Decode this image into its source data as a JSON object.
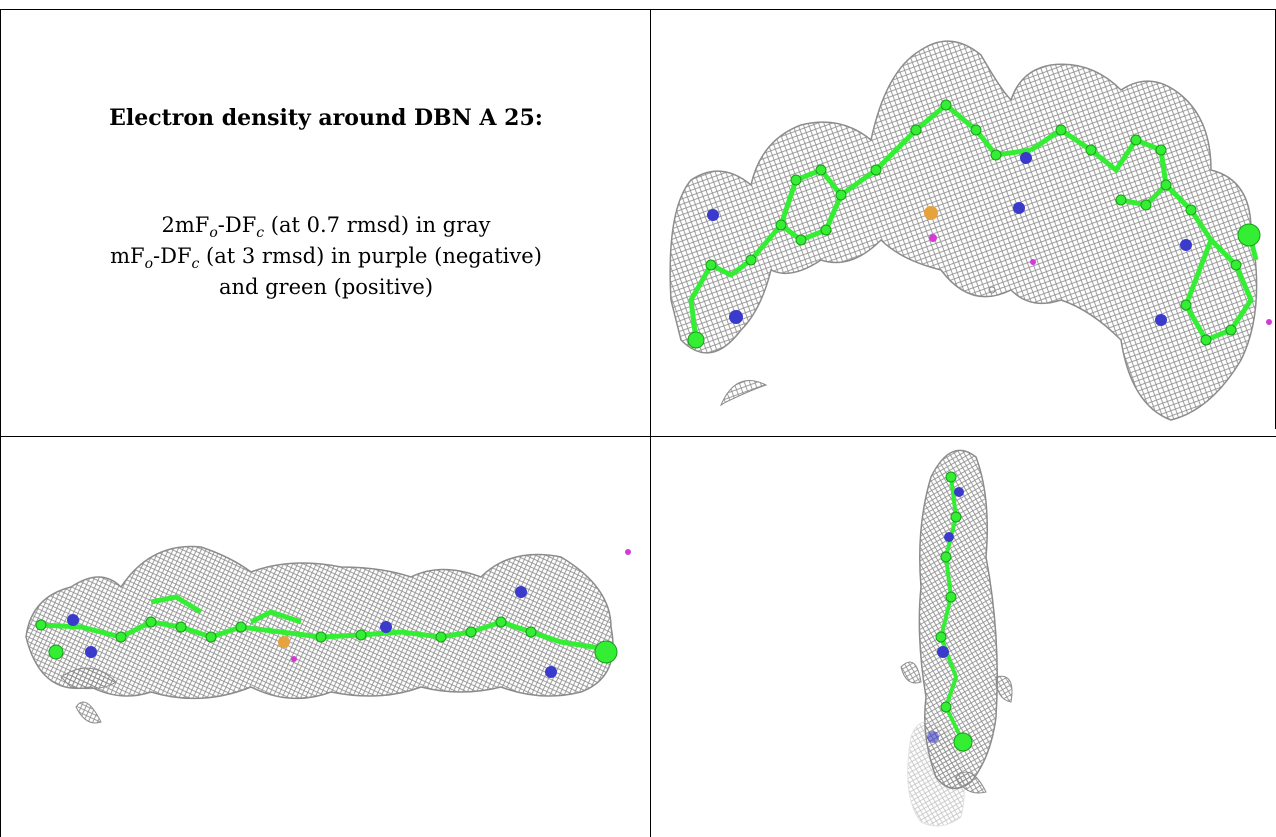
{
  "title": "Electron density around DBN A 25:",
  "legend": {
    "line1": {
      "pre": "2mF",
      "sub1": "o",
      "mid": "-DF",
      "sub2": "c",
      "post": " (at 0.7 rmsd) in gray"
    },
    "line2": {
      "pre": "mF",
      "sub1": "o",
      "mid": "-DF",
      "sub2": "c",
      "post": " (at 3 rmsd) in purple (negative)"
    },
    "line3": "and green (positive)"
  },
  "colors": {
    "mesh": "#8c8c8c",
    "carbon": "#33ee33",
    "nitrogen": "#3a3acc",
    "sulfur": "#e6a23c",
    "negative": "#d63ad6",
    "positive": "#33ee33"
  },
  "panels": [
    {
      "view": "top-view"
    },
    {
      "view": "side-view"
    },
    {
      "view": "end-view"
    }
  ]
}
